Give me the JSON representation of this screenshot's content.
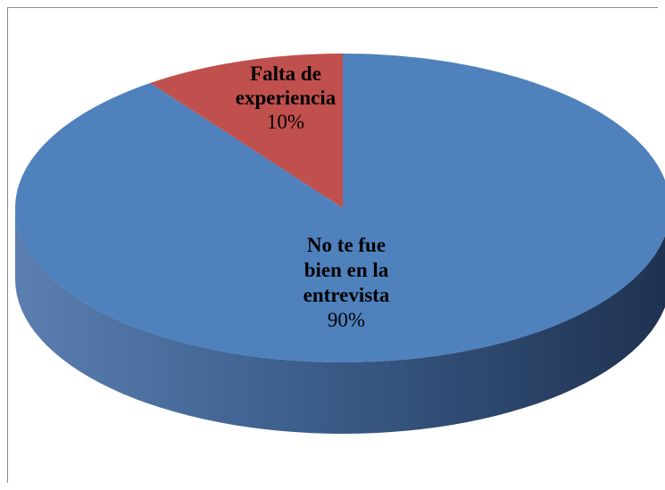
{
  "chart_data": {
    "type": "pie",
    "three_d": true,
    "start_angle_deg": 0,
    "direction": "clockwise",
    "legend": "none",
    "slices": [
      {
        "label_lines": [
          "No te fue",
          "bien en la",
          "entrevista"
        ],
        "value": 90,
        "value_label": "90%",
        "color": "#4f81bd"
      },
      {
        "label_lines": [
          "Falta de",
          "experiencia"
        ],
        "value": 10,
        "value_label": "10%",
        "color": "#c0504d"
      }
    ]
  }
}
